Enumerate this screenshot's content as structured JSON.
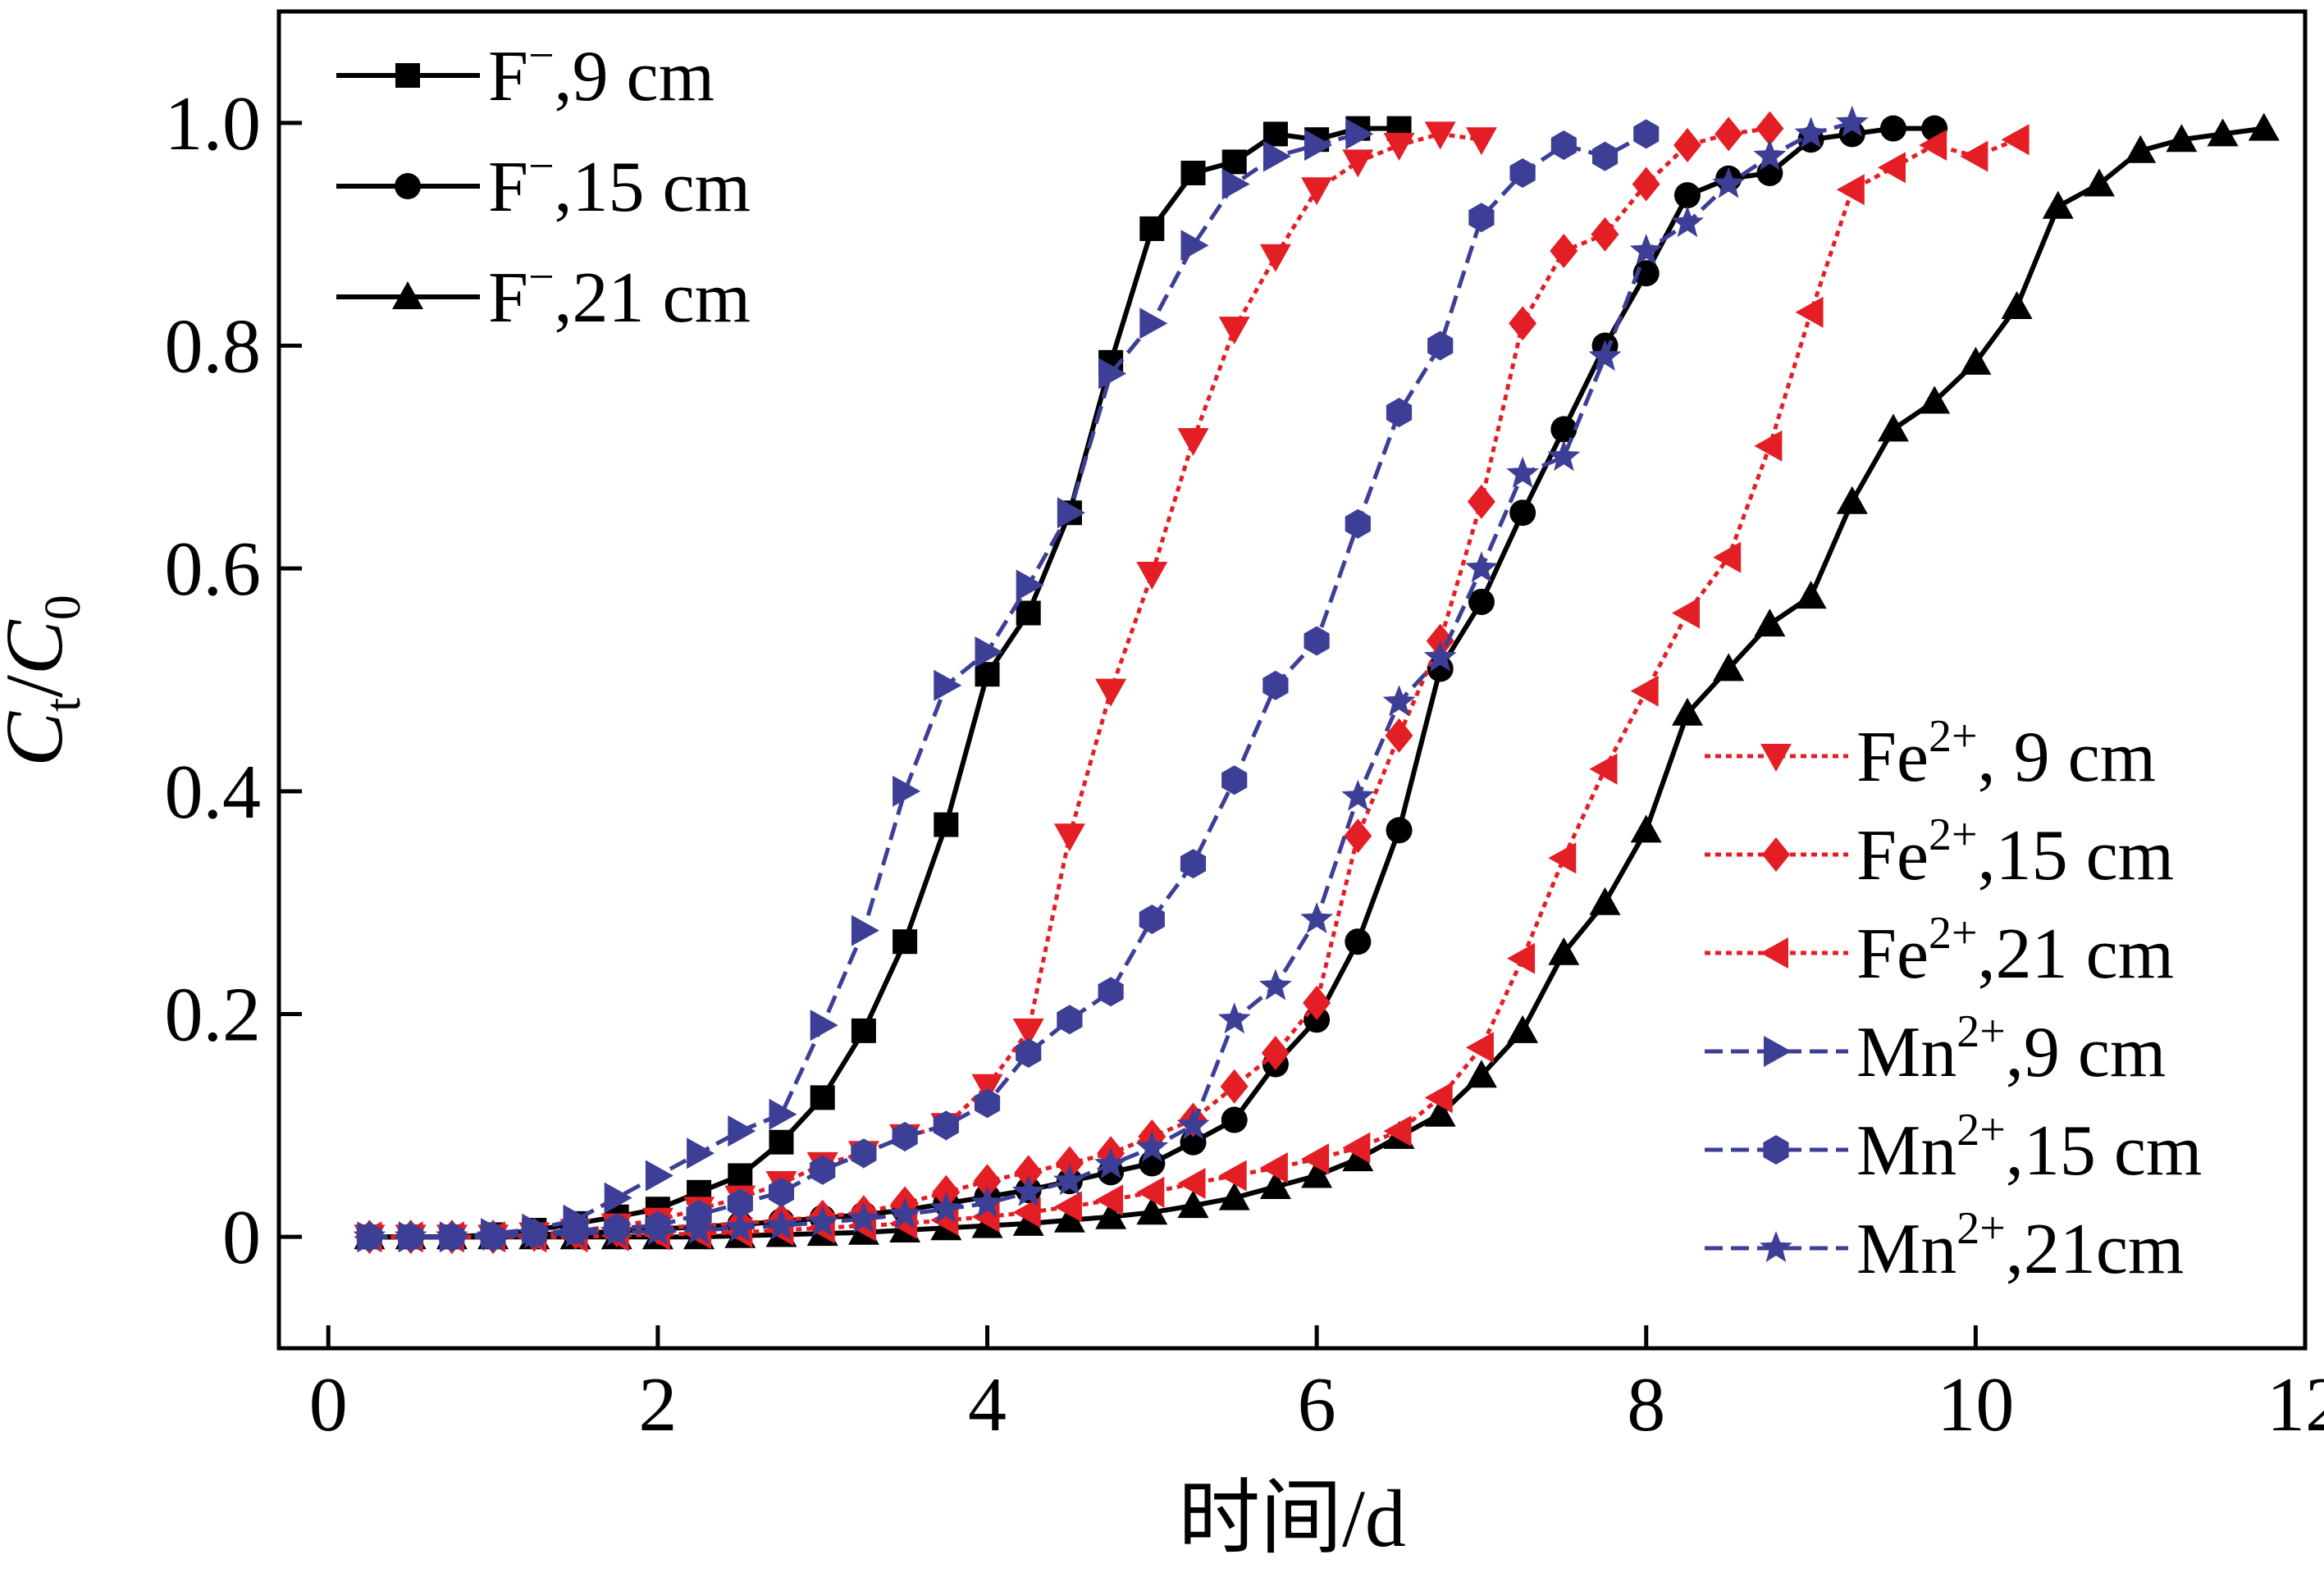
{
  "chart_data": {
    "type": "line",
    "xlabel": "时间/d",
    "ylabel": "Ct/C0",
    "ylabel_parts": {
      "main1": "C",
      "sub1": "t",
      "slash": "/",
      "main2": "C",
      "sub2": "0"
    },
    "xlim": [
      -0.3,
      12
    ],
    "ylim": [
      -0.1,
      1.1
    ],
    "x_ticks": [
      0,
      2,
      4,
      6,
      8,
      10,
      12
    ],
    "x_tick_labels": [
      "0",
      "2",
      "4",
      "6",
      "8",
      "10",
      "12"
    ],
    "y_ticks": [
      0,
      0.2,
      0.4,
      0.6,
      0.8,
      1.0
    ],
    "y_tick_labels": [
      "0",
      "0.2",
      "0.4",
      "0.6",
      "0.8",
      "1.0"
    ],
    "grid": false,
    "legend": [
      {
        "placement": "top-left",
        "series": [
          0,
          1,
          2
        ]
      },
      {
        "placement": "bottom-right",
        "series": [
          3,
          4,
          5,
          6,
          7,
          8
        ]
      }
    ],
    "series": [
      {
        "name": "F⁻,9 cm",
        "label_base": "F",
        "label_sup": "−",
        "label_tail": ",9 cm",
        "color": "#000000",
        "dash": "solid",
        "marker": "square",
        "x": [
          0.25,
          0.5,
          0.75,
          1.0,
          1.25,
          1.5,
          1.75,
          2.0,
          2.25,
          2.5,
          2.75,
          3.0,
          3.25,
          3.5,
          3.75,
          4.0,
          4.25,
          4.5,
          4.75,
          5.0,
          5.25,
          5.5,
          5.75,
          6.0,
          6.25,
          6.5
        ],
        "y": [
          0,
          0,
          0,
          0.002,
          0.006,
          0.012,
          0.018,
          0.025,
          0.04,
          0.055,
          0.085,
          0.125,
          0.185,
          0.265,
          0.37,
          0.505,
          0.56,
          0.65,
          0.785,
          0.905,
          0.955,
          0.965,
          0.99,
          0.985,
          0.995,
          0.995
        ]
      },
      {
        "name": "F⁻,15 cm",
        "label_base": "F",
        "label_sup": "−",
        "label_tail": ",15 cm",
        "color": "#000000",
        "dash": "solid",
        "marker": "circle",
        "x": [
          0.25,
          0.5,
          0.75,
          1.0,
          1.25,
          1.5,
          1.75,
          2.0,
          2.25,
          2.5,
          2.75,
          3.0,
          3.25,
          3.5,
          3.75,
          4.0,
          4.25,
          4.5,
          4.75,
          5.0,
          5.25,
          5.5,
          5.75,
          6.0,
          6.25,
          6.5,
          6.75,
          7.0,
          7.25,
          7.5,
          7.75,
          8.0,
          8.25,
          8.5,
          8.75,
          9.0,
          9.25,
          9.5,
          9.75
        ],
        "y": [
          0,
          0,
          0,
          0,
          0.002,
          0.003,
          0.005,
          0.007,
          0.009,
          0.011,
          0.014,
          0.017,
          0.02,
          0.024,
          0.03,
          0.036,
          0.042,
          0.05,
          0.058,
          0.066,
          0.085,
          0.105,
          0.155,
          0.195,
          0.265,
          0.365,
          0.51,
          0.57,
          0.65,
          0.725,
          0.8,
          0.865,
          0.935,
          0.95,
          0.955,
          0.985,
          0.99,
          0.995,
          0.995
        ]
      },
      {
        "name": "F⁻,21 cm",
        "label_base": "F",
        "label_sup": "−",
        "label_tail": ",21 cm",
        "color": "#000000",
        "dash": "solid",
        "marker": "triangle-up",
        "x": [
          0.25,
          0.5,
          0.75,
          1.0,
          1.25,
          1.5,
          1.75,
          2.0,
          2.25,
          2.5,
          2.75,
          3.0,
          3.25,
          3.5,
          3.75,
          4.0,
          4.25,
          4.5,
          4.75,
          5.0,
          5.25,
          5.5,
          5.75,
          6.0,
          6.25,
          6.5,
          6.75,
          7.0,
          7.25,
          7.5,
          7.75,
          8.0,
          8.25,
          8.5,
          8.75,
          9.0,
          9.25,
          9.5,
          9.75,
          10.0,
          10.25,
          10.5,
          10.75,
          11.0,
          11.25,
          11.5,
          11.75
        ],
        "y": [
          0,
          0,
          0,
          0,
          0,
          0,
          0,
          0,
          0,
          0.001,
          0.002,
          0.003,
          0.004,
          0.006,
          0.008,
          0.01,
          0.012,
          0.015,
          0.018,
          0.022,
          0.028,
          0.035,
          0.045,
          0.055,
          0.07,
          0.09,
          0.11,
          0.145,
          0.185,
          0.255,
          0.3,
          0.365,
          0.47,
          0.51,
          0.55,
          0.575,
          0.66,
          0.725,
          0.75,
          0.785,
          0.835,
          0.925,
          0.945,
          0.975,
          0.985,
          0.99,
          0.995
        ]
      },
      {
        "name": "Fe²⁺, 9 cm",
        "label_base": "Fe",
        "label_sup": "2+",
        "label_tail": ", 9 cm",
        "color": "#e31e24",
        "dash": "dotted",
        "marker": "triangle-down",
        "x": [
          0.25,
          0.5,
          0.75,
          1.0,
          1.25,
          1.5,
          1.75,
          2.0,
          2.25,
          2.5,
          2.75,
          3.0,
          3.25,
          3.5,
          3.75,
          4.0,
          4.25,
          4.5,
          4.75,
          5.0,
          5.25,
          5.5,
          5.75,
          6.0,
          6.25,
          6.5,
          6.75,
          7.0
        ],
        "y": [
          0,
          0,
          0,
          0,
          0.002,
          0.005,
          0.01,
          0.015,
          0.025,
          0.035,
          0.048,
          0.065,
          0.075,
          0.09,
          0.1,
          0.135,
          0.185,
          0.36,
          0.49,
          0.595,
          0.715,
          0.815,
          0.88,
          0.94,
          0.965,
          0.98,
          0.99,
          0.985
        ]
      },
      {
        "name": "Fe²⁺,15 cm",
        "label_base": "Fe",
        "label_sup": "2+",
        "label_tail": ",15 cm",
        "color": "#e31e24",
        "dash": "dotted",
        "marker": "diamond",
        "x": [
          0.25,
          0.5,
          0.75,
          1.0,
          1.25,
          1.5,
          1.75,
          2.0,
          2.25,
          2.5,
          2.75,
          3.0,
          3.25,
          3.5,
          3.75,
          4.0,
          4.25,
          4.5,
          4.75,
          5.0,
          5.25,
          5.5,
          5.75,
          6.0,
          6.25,
          6.5,
          6.75,
          7.0,
          7.25,
          7.5,
          7.75,
          8.0,
          8.25,
          8.5,
          8.75
        ],
        "y": [
          0,
          0,
          0,
          0,
          0.002,
          0.004,
          0.006,
          0.008,
          0.01,
          0.012,
          0.015,
          0.018,
          0.022,
          0.03,
          0.04,
          0.05,
          0.058,
          0.066,
          0.075,
          0.09,
          0.105,
          0.135,
          0.165,
          0.21,
          0.36,
          0.45,
          0.535,
          0.66,
          0.82,
          0.885,
          0.9,
          0.945,
          0.98,
          0.99,
          0.995
        ]
      },
      {
        "name": "Fe²⁺,21 cm",
        "label_base": "Fe",
        "label_sup": "2+",
        "label_tail": ",21 cm",
        "color": "#e31e24",
        "dash": "dotted",
        "marker": "triangle-left",
        "x": [
          0.25,
          0.5,
          0.75,
          1.0,
          1.25,
          1.5,
          1.75,
          2.0,
          2.25,
          2.5,
          2.75,
          3.0,
          3.25,
          3.5,
          3.75,
          4.0,
          4.25,
          4.5,
          4.75,
          5.0,
          5.25,
          5.5,
          5.75,
          6.0,
          6.25,
          6.5,
          6.75,
          7.0,
          7.25,
          7.5,
          7.75,
          8.0,
          8.25,
          8.5,
          8.75,
          9.0,
          9.25,
          9.5,
          9.75,
          10.0,
          10.25
        ],
        "y": [
          0,
          0,
          0,
          0,
          0,
          0,
          0.001,
          0.002,
          0.003,
          0.004,
          0.006,
          0.008,
          0.01,
          0.012,
          0.015,
          0.018,
          0.022,
          0.027,
          0.033,
          0.04,
          0.048,
          0.055,
          0.062,
          0.07,
          0.08,
          0.095,
          0.125,
          0.17,
          0.25,
          0.34,
          0.42,
          0.49,
          0.56,
          0.61,
          0.71,
          0.83,
          0.94,
          0.96,
          0.98,
          0.97,
          0.985
        ]
      },
      {
        "name": "Mn²⁺,9 cm",
        "label_base": "Mn",
        "label_sup": "2+",
        "label_tail": ",9 cm",
        "color": "#3c3f95",
        "dash": "dashed",
        "marker": "triangle-right",
        "x": [
          0.25,
          0.5,
          0.75,
          1.0,
          1.25,
          1.5,
          1.75,
          2.0,
          2.25,
          2.5,
          2.75,
          3.0,
          3.25,
          3.5,
          3.75,
          4.0,
          4.25,
          4.5,
          4.75,
          5.0,
          5.25,
          5.5,
          5.75,
          6.0,
          6.25
        ],
        "y": [
          0,
          0,
          0,
          0.003,
          0.007,
          0.015,
          0.035,
          0.055,
          0.075,
          0.095,
          0.11,
          0.19,
          0.275,
          0.4,
          0.495,
          0.525,
          0.585,
          0.65,
          0.775,
          0.82,
          0.89,
          0.945,
          0.97,
          0.98,
          0.99
        ]
      },
      {
        "name": "Mn²⁺,15 cm",
        "label_base": "Mn",
        "label_sup": "2+",
        "label_tail": ",15 cm",
        "color": "#3c3f95",
        "dash": "dashed",
        "marker": "hexagon",
        "x": [
          0.25,
          0.5,
          0.75,
          1.0,
          1.25,
          1.5,
          1.75,
          2.0,
          2.25,
          2.5,
          2.75,
          3.0,
          3.25,
          3.5,
          3.75,
          4.0,
          4.25,
          4.5,
          4.75,
          5.0,
          5.25,
          5.5,
          5.75,
          6.0,
          6.25,
          6.5,
          6.75,
          7.0,
          7.25,
          7.5,
          7.75,
          8.0
        ],
        "y": [
          0,
          0,
          0,
          0,
          0.003,
          0.006,
          0.008,
          0.01,
          0.02,
          0.03,
          0.04,
          0.06,
          0.075,
          0.09,
          0.1,
          0.12,
          0.165,
          0.195,
          0.22,
          0.285,
          0.335,
          0.41,
          0.495,
          0.535,
          0.64,
          0.74,
          0.8,
          0.915,
          0.955,
          0.98,
          0.97,
          0.99
        ]
      },
      {
        "name": "Mn²⁺,21cm",
        "label_base": "Mn",
        "label_sup": "2+",
        "label_tail": ",21cm",
        "color": "#3c3f95",
        "dash": "dashed",
        "marker": "star",
        "x": [
          0.25,
          0.5,
          0.75,
          1.0,
          1.25,
          1.5,
          1.75,
          2.0,
          2.25,
          2.5,
          2.75,
          3.0,
          3.25,
          3.5,
          3.75,
          4.0,
          4.25,
          4.5,
          4.75,
          5.0,
          5.25,
          5.5,
          5.75,
          6.0,
          6.25,
          6.5,
          6.75,
          7.0,
          7.25,
          7.5,
          7.75,
          8.0,
          8.25,
          8.5,
          8.75,
          9.0,
          9.25
        ],
        "y": [
          0,
          0,
          0,
          0,
          0.002,
          0.003,
          0.004,
          0.005,
          0.006,
          0.008,
          0.01,
          0.013,
          0.016,
          0.02,
          0.025,
          0.03,
          0.04,
          0.05,
          0.065,
          0.08,
          0.1,
          0.195,
          0.225,
          0.285,
          0.395,
          0.48,
          0.52,
          0.6,
          0.685,
          0.7,
          0.79,
          0.885,
          0.91,
          0.945,
          0.97,
          0.99,
          1.0
        ]
      }
    ]
  }
}
